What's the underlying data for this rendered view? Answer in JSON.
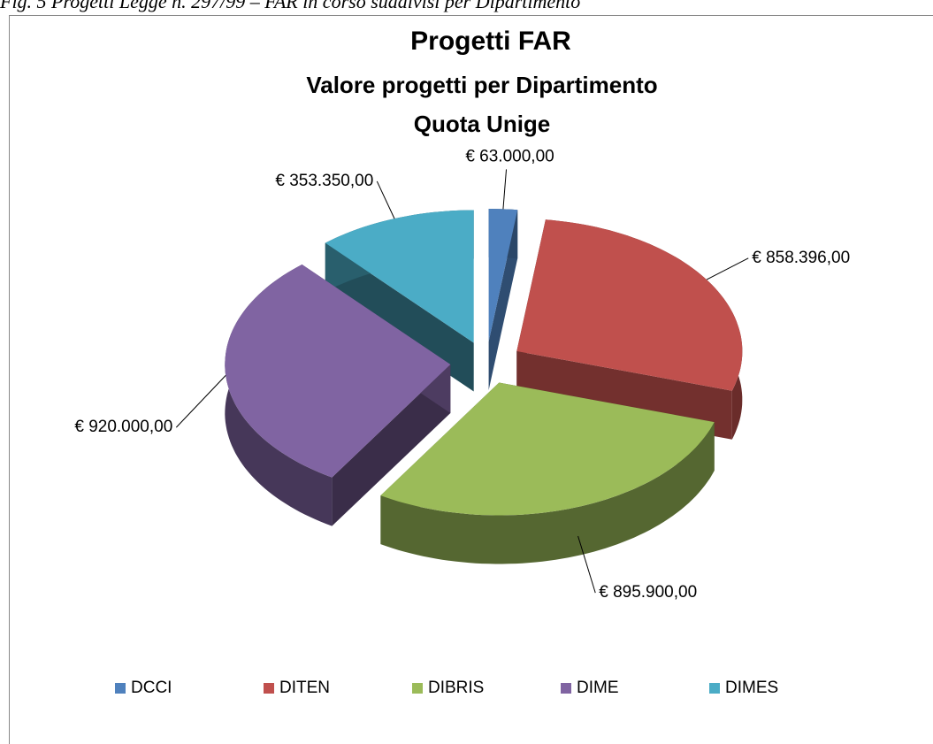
{
  "caption": "Fig. 5 Progetti Legge n. 297/99 – FAR in corso suddivisi per Dipartimento",
  "chart_data": {
    "type": "pie3d",
    "title": "Progetti FAR",
    "subtitle": [
      "Valore progetti per Dipartimento",
      "Quota Unige"
    ],
    "categories": [
      "DCCI",
      "DITEN",
      "DIBRIS",
      "DIME",
      "DIMES"
    ],
    "values": [
      63000,
      858396,
      895900,
      920000,
      353350
    ],
    "value_labels": [
      "€ 63.000,00",
      "€ 858.396,00",
      "€ 895.900,00",
      "€ 920.000,00",
      "€ 353.350,00"
    ],
    "colors": [
      "#4f81bd",
      "#c0504d",
      "#9bbb59",
      "#8064a2",
      "#4bacc6"
    ],
    "legend": "bottom"
  }
}
